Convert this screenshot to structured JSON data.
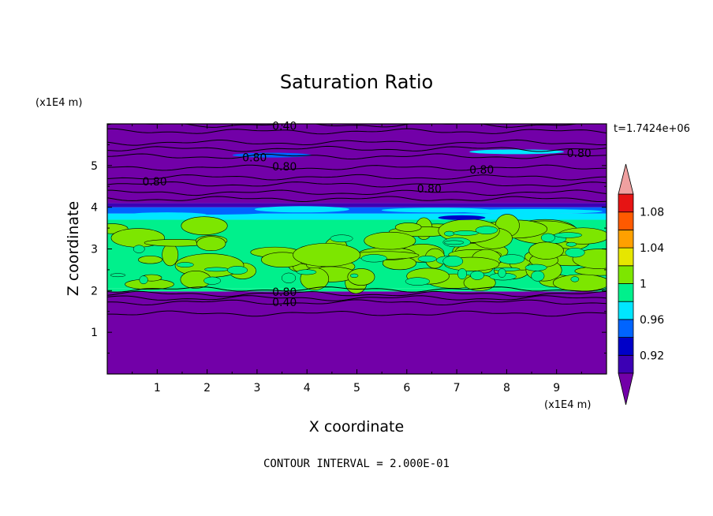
{
  "chart_data": {
    "type": "heatmap",
    "title": "Saturation Ratio",
    "xlabel": "X coordinate",
    "ylabel": "Z coordinate",
    "x_unit": "(x1E4 m)",
    "y_unit": "(x1E4 m)",
    "time_label": "t=1.7424e+06",
    "footer": "CONTOUR INTERVAL = 2.000E-01",
    "xlim": [
      0,
      10
    ],
    "ylim": [
      0,
      6
    ],
    "x_ticks": [
      1,
      2,
      3,
      4,
      5,
      6,
      7,
      8,
      9
    ],
    "y_ticks": [
      1,
      2,
      3,
      4,
      5
    ],
    "grid": false,
    "colorbar": {
      "labels": [
        "0.92",
        "0.96",
        "1",
        "1.04",
        "1.08"
      ],
      "levels": [
        0.9,
        0.92,
        0.94,
        0.96,
        0.98,
        1.0,
        1.02,
        1.04,
        1.06,
        1.08,
        1.1
      ],
      "colors": [
        "#7200a8",
        "#3c00b4",
        "#0000c8",
        "#0064ff",
        "#00e6ff",
        "#00f08c",
        "#7de600",
        "#e6e600",
        "#ffa000",
        "#ff5a00",
        "#e61414",
        "#f0a0a0"
      ],
      "min_color": "#7200a8",
      "max_color": "#f0a0a0"
    },
    "bands": [
      {
        "z0": 0.0,
        "z1": 1.98,
        "value": 0.4,
        "color": "#7200a8"
      },
      {
        "z0": 1.98,
        "z1": 2.05,
        "value": 0.97,
        "color": "#00f08c"
      },
      {
        "z0": 2.05,
        "z1": 3.7,
        "value": 1.0,
        "color": "#00f08c"
      },
      {
        "z0": 3.7,
        "z1": 3.85,
        "value": 0.97,
        "color": "#00e6ff"
      },
      {
        "z0": 3.85,
        "z1": 4.0,
        "value": 0.95,
        "color": "#0064ff"
      },
      {
        "z0": 4.0,
        "z1": 4.1,
        "value": 0.91,
        "color": "#3c00b4"
      },
      {
        "z0": 4.1,
        "z1": 6.0,
        "value": 0.6,
        "color": "#7200a8"
      }
    ],
    "contour_labels": [
      {
        "text": "0.40",
        "x": 3.55,
        "z": 5.95
      },
      {
        "text": "0.80",
        "x": 2.95,
        "z": 5.2
      },
      {
        "text": "0.80",
        "x": 3.55,
        "z": 4.98
      },
      {
        "text": "0.80",
        "x": 9.45,
        "z": 5.3
      },
      {
        "text": "0.80",
        "x": 7.5,
        "z": 4.9
      },
      {
        "text": "0.80",
        "x": 0.95,
        "z": 4.62
      },
      {
        "text": "0.80",
        "x": 6.45,
        "z": 4.45
      },
      {
        "text": "0.80",
        "x": 3.55,
        "z": 1.97
      },
      {
        "text": "0.40",
        "x": 3.55,
        "z": 1.72
      }
    ],
    "contour_lines_z": [
      5.98,
      5.82,
      5.55,
      5.4,
      5.22,
      4.95,
      4.72,
      4.55,
      4.35,
      4.2,
      2.03,
      1.92,
      1.82,
      1.72,
      1.45
    ]
  }
}
